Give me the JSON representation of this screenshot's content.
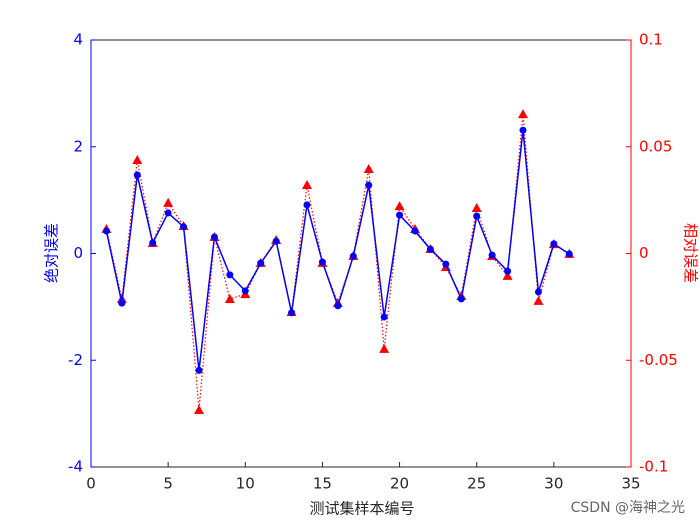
{
  "chart_data": {
    "type": "line",
    "xlabel": "测试集样本编号",
    "ylabel": "绝对误差",
    "y2label": "相对误差",
    "annotation": "CSDN @海神之光",
    "x": [
      1,
      2,
      3,
      4,
      5,
      6,
      7,
      8,
      9,
      10,
      11,
      12,
      13,
      14,
      15,
      16,
      17,
      18,
      19,
      20,
      21,
      22,
      23,
      24,
      25,
      26,
      27,
      28,
      29,
      30,
      31
    ],
    "series": [
      {
        "color": "#0000ff",
        "line_style": "solid",
        "marker": "circle",
        "values": [
          0.42,
          -0.93,
          1.47,
          0.2,
          0.76,
          0.5,
          -2.19,
          0.31,
          -0.4,
          -0.7,
          -0.18,
          0.23,
          -1.11,
          0.91,
          -0.16,
          -0.98,
          -0.05,
          1.28,
          -1.19,
          0.72,
          0.42,
          0.08,
          -0.2,
          -0.85,
          0.7,
          -0.03,
          -0.33,
          2.31,
          -0.72,
          0.18,
          -0.01
        ]
      },
      {
        "color": "#ff0000",
        "line_style": "dotted",
        "marker": "triangle",
        "axis": "y2",
        "values": [
          0.0115,
          -0.0213,
          0.0438,
          0.0049,
          0.0237,
          0.0129,
          -0.0733,
          0.0077,
          -0.0213,
          -0.019,
          -0.0044,
          0.0063,
          -0.0274,
          0.0321,
          -0.0044,
          -0.0232,
          -0.0012,
          0.0396,
          -0.0447,
          0.0222,
          0.0115,
          0.0021,
          -0.0063,
          -0.0199,
          0.0213,
          -0.0012,
          -0.0105,
          0.0653,
          -0.0222,
          0.0044,
          -0.0002
        ]
      }
    ],
    "xlim": [
      0,
      35
    ],
    "xticks": [
      0,
      5,
      10,
      15,
      20,
      25,
      30,
      35
    ],
    "ylim": [
      -4,
      4
    ],
    "yticks": [
      -4,
      -2,
      0,
      2,
      4
    ],
    "y2lim": [
      -0.1,
      0.1
    ],
    "y2ticks": [
      -0.1,
      -0.05,
      0,
      0.05,
      0.1
    ]
  }
}
